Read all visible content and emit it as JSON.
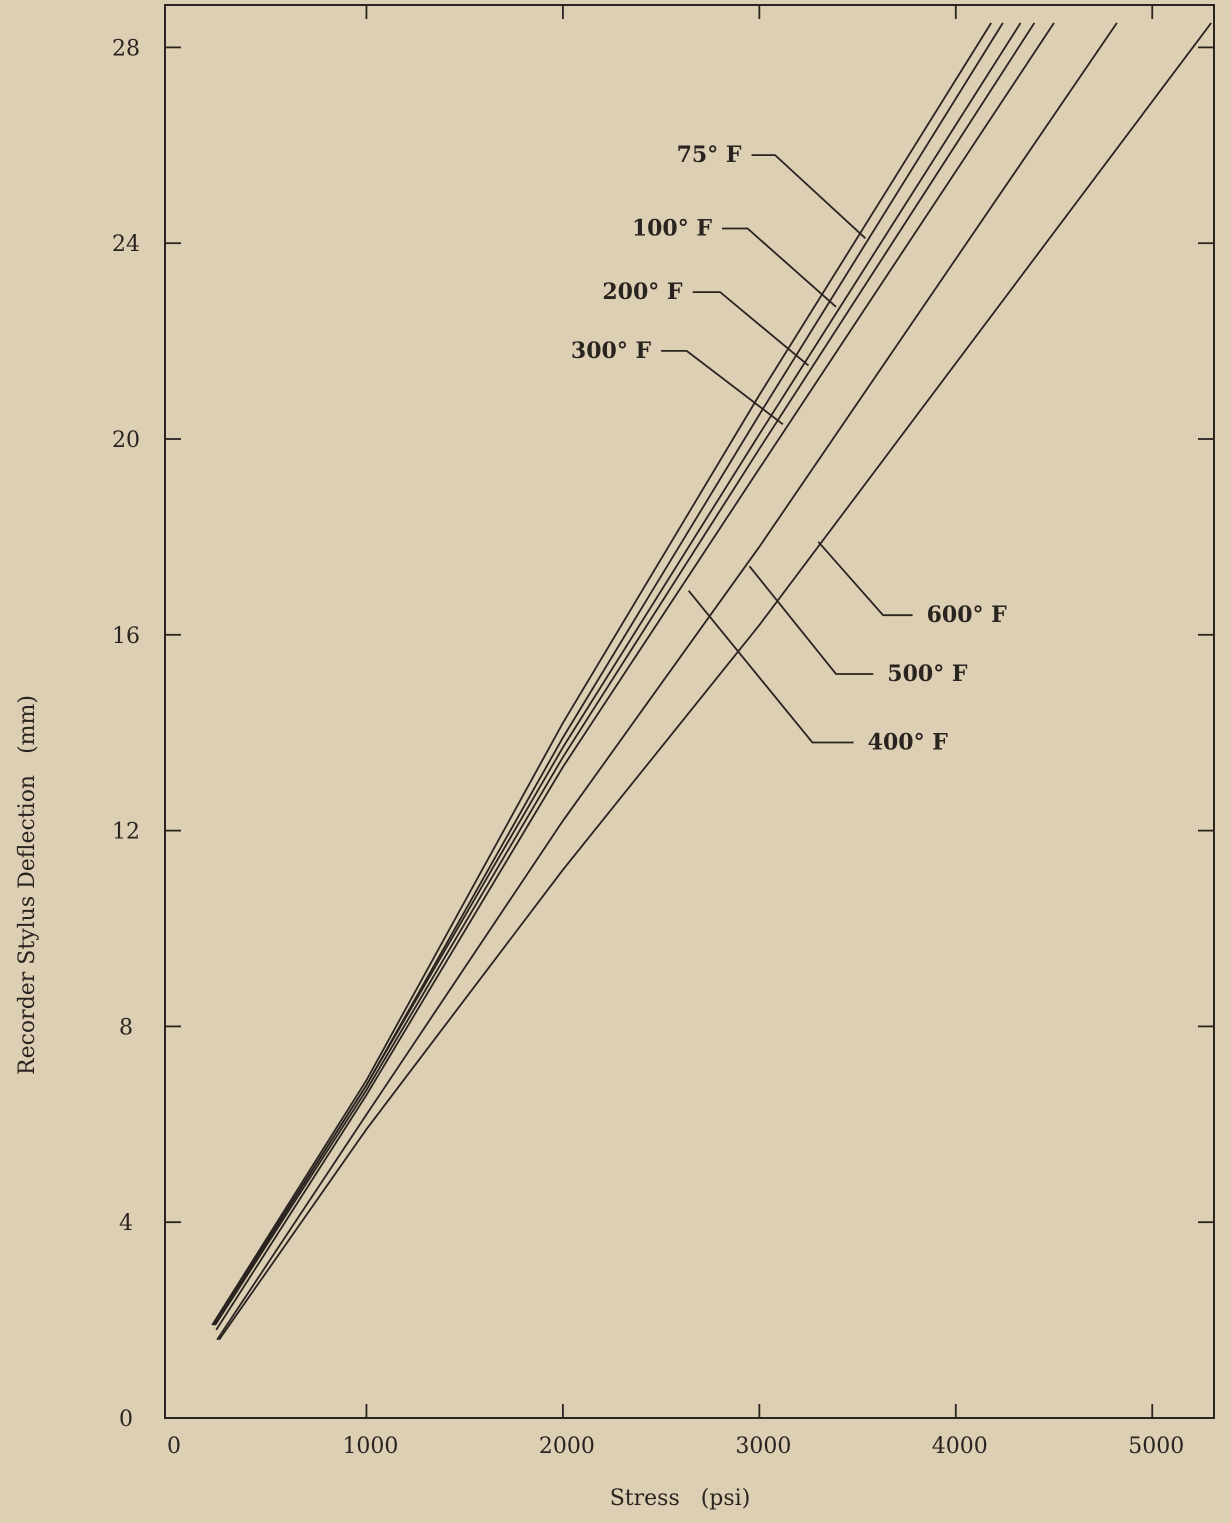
{
  "chart_data": {
    "type": "line",
    "title": "",
    "xlabel": "Stress   (psi)",
    "ylabel": "Recorder Stylus Deflection   (mm)",
    "xlim": [
      0,
      5400
    ],
    "ylim": [
      0,
      28.8
    ],
    "x_ticks": [
      0,
      1000,
      2000,
      3000,
      4000,
      5000
    ],
    "x_tick_labels": [
      "0",
      "1000",
      "2000",
      "3000",
      "4000",
      "5000"
    ],
    "y_ticks": [
      0,
      4,
      8,
      12,
      16,
      20,
      24,
      28
    ],
    "y_tick_labels": [
      "0",
      "4",
      "8",
      "12",
      "16",
      "20",
      "24",
      "28"
    ],
    "grid": false,
    "legend": "none",
    "series": [
      {
        "name": "75° F",
        "x": [
          215,
          1000,
          2000,
          3000,
          4180
        ],
        "y": [
          1.9,
          6.9,
          14.2,
          20.9,
          28.5
        ]
      },
      {
        "name": "100° F",
        "x": [
          220,
          1000,
          2000,
          3000,
          4240
        ],
        "y": [
          1.9,
          6.8,
          13.9,
          20.5,
          28.5
        ]
      },
      {
        "name": "200° F",
        "x": [
          225,
          1000,
          2000,
          3000,
          4330
        ],
        "y": [
          1.9,
          6.8,
          13.7,
          20.1,
          28.5
        ]
      },
      {
        "name": "300° F",
        "x": [
          230,
          1000,
          2000,
          3000,
          4400
        ],
        "y": [
          1.9,
          6.7,
          13.5,
          19.8,
          28.5
        ]
      },
      {
        "name": "400° F",
        "x": [
          235,
          1000,
          2000,
          3000,
          4500
        ],
        "y": [
          1.8,
          6.6,
          13.3,
          19.4,
          28.5
        ]
      },
      {
        "name": "500° F",
        "x": [
          240,
          1000,
          2000,
          3000,
          4820
        ],
        "y": [
          1.6,
          6.2,
          12.2,
          17.8,
          28.5
        ]
      },
      {
        "name": "600° F",
        "x": [
          250,
          1000,
          2000,
          3000,
          5300
        ],
        "y": [
          1.6,
          5.9,
          11.2,
          16.2,
          28.5
        ]
      }
    ],
    "annotations": [
      {
        "text": "75° F",
        "points": [
          [
            2960,
            25.8
          ],
          [
            3080,
            25.8
          ],
          [
            3540,
            24.1
          ]
        ]
      },
      {
        "text": "100° F",
        "points": [
          [
            2810,
            24.3
          ],
          [
            2940,
            24.3
          ],
          [
            3390,
            22.7
          ]
        ]
      },
      {
        "text": "200° F",
        "points": [
          [
            2660,
            23.0
          ],
          [
            2800,
            23.0
          ],
          [
            3250,
            21.5
          ]
        ]
      },
      {
        "text": "300° F",
        "points": [
          [
            2500,
            21.8
          ],
          [
            2630,
            21.8
          ],
          [
            3120,
            20.3
          ]
        ]
      },
      {
        "text": "600° F",
        "points": [
          [
            3300,
            17.9
          ],
          [
            3630,
            16.4
          ],
          [
            3780,
            16.4
          ]
        ]
      },
      {
        "text": "500° F",
        "points": [
          [
            2950,
            17.4
          ],
          [
            3390,
            15.2
          ],
          [
            3580,
            15.2
          ]
        ]
      },
      {
        "text": "400° F",
        "points": [
          [
            2640,
            16.9
          ],
          [
            3270,
            13.8
          ],
          [
            3480,
            13.8
          ]
        ]
      }
    ]
  }
}
